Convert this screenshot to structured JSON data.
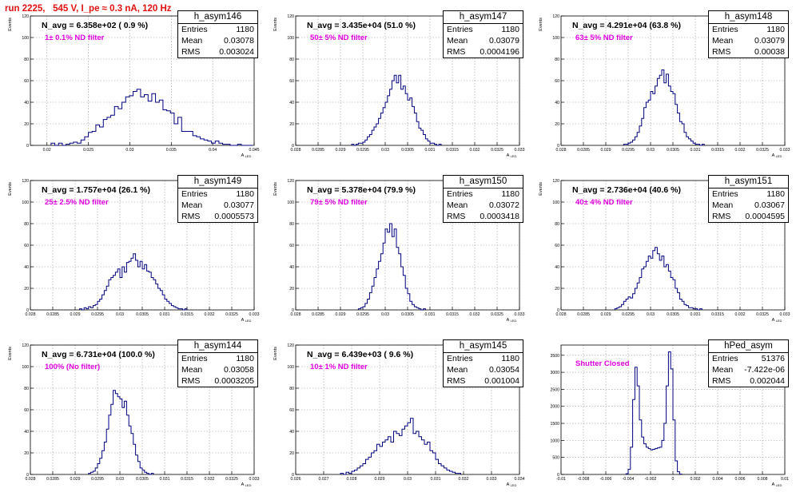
{
  "header": {
    "run_title": "run 2225,   545 V, I_pe ≈ 0.3 nA, 120 Hz"
  },
  "colors": {
    "hist_line": "#000080",
    "grid": "#999999",
    "filter_text": "#e000e0",
    "title_text": "#e01010"
  },
  "stat_labels": {
    "entries": "Entries",
    "mean": "Mean",
    "rms": "RMS"
  },
  "chart_data": [
    {
      "type": "histogram",
      "name": "h_asym146",
      "navg": "N_avg = 6.358e+02 ( 0.9 %)",
      "filter": "1± 0.1% ND filter",
      "stats": {
        "entries": "1180",
        "mean": "0.03078",
        "rms": "0.003024"
      },
      "xlabel": "A_LED",
      "ylabel": "Events",
      "xlim": [
        0.018,
        0.045
      ],
      "ylim": [
        0,
        120
      ],
      "xticks": [
        0.02,
        0.025,
        0.03,
        0.035,
        0.04,
        0.045
      ],
      "xtick_labels": [
        "0.02",
        "0.025",
        "0.03",
        "0.035",
        "0.04",
        "0.045"
      ],
      "yticks": [
        0,
        20,
        40,
        60,
        80,
        100,
        120
      ],
      "ytick_labels": [
        "0",
        "20",
        "40",
        "60",
        "80",
        "100",
        "120"
      ],
      "bins": {
        "start": 0.0205,
        "width": 0.00045,
        "values": [
          2,
          0,
          2,
          0,
          1,
          2,
          3,
          2,
          5,
          8,
          12,
          13,
          19,
          17,
          24,
          26,
          28,
          36,
          34,
          40,
          45,
          46,
          50,
          52,
          45,
          47,
          41,
          48,
          40,
          42,
          33,
          32,
          30,
          20,
          26,
          13,
          13,
          13,
          9,
          8,
          6,
          5,
          4,
          2,
          4,
          2,
          1,
          1,
          0,
          0,
          1,
          0,
          0,
          0
        ]
      },
      "grid": true
    },
    {
      "type": "histogram",
      "name": "h_asym147",
      "navg": "N_avg = 3.435e+04 (51.0 %)",
      "filter": "50± 5% ND filter",
      "stats": {
        "entries": "1180",
        "mean": "0.03079",
        "rms": "0.0004196"
      },
      "xlabel": "A_LED",
      "ylabel": "Events",
      "xlim": [
        0.028,
        0.033
      ],
      "ylim": [
        0,
        120
      ],
      "xticks": [
        0.028,
        0.0285,
        0.029,
        0.0295,
        0.03,
        0.0305,
        0.031,
        0.0315,
        0.032,
        0.0325,
        0.033
      ],
      "xtick_labels": [
        "0.028",
        "0.0285",
        "0.029",
        "0.0295",
        "0.03",
        "0.0305",
        "0.031",
        "0.0315",
        "0.032",
        "0.0325",
        "0.033"
      ],
      "yticks": [
        0,
        20,
        40,
        60,
        80,
        100,
        120
      ],
      "ytick_labels": [
        "0",
        "20",
        "40",
        "60",
        "80",
        "100",
        "120"
      ],
      "bins": {
        "start": 0.02925,
        "width": 5e-05,
        "values": [
          1,
          0,
          1,
          2,
          2,
          3,
          5,
          8,
          10,
          14,
          17,
          20,
          25,
          30,
          35,
          40,
          46,
          52,
          60,
          65,
          58,
          65,
          52,
          55,
          48,
          42,
          44,
          36,
          30,
          22,
          16,
          14,
          10,
          6,
          4,
          2,
          2,
          1,
          0,
          1
        ]
      },
      "grid": true
    },
    {
      "type": "histogram",
      "name": "h_asym148",
      "navg": "N_avg = 4.291e+04 (63.8 %)",
      "filter": "63± 5% ND filter",
      "stats": {
        "entries": "1180",
        "mean": "0.03079",
        "rms": "0.00038"
      },
      "xlabel": "A_LED",
      "ylabel": "Events",
      "xlim": [
        0.028,
        0.033
      ],
      "ylim": [
        0,
        120
      ],
      "xticks": [
        0.028,
        0.0285,
        0.029,
        0.0295,
        0.03,
        0.0305,
        0.031,
        0.0315,
        0.032,
        0.0325,
        0.033
      ],
      "xtick_labels": [
        "0.028",
        "0.0285",
        "0.029",
        "0.0295",
        "0.03",
        "0.0305",
        "0.031",
        "0.0315",
        "0.032",
        "0.0325",
        "0.033"
      ],
      "yticks": [
        0,
        20,
        40,
        60,
        80,
        100,
        120
      ],
      "ytick_labels": [
        "0",
        "20",
        "40",
        "60",
        "80",
        "100",
        "120"
      ],
      "bins": {
        "start": 0.0294,
        "width": 5e-05,
        "values": [
          1,
          1,
          2,
          3,
          5,
          8,
          12,
          18,
          25,
          35,
          40,
          42,
          50,
          48,
          55,
          62,
          65,
          70,
          58,
          66,
          55,
          50,
          48,
          38,
          30,
          22,
          20,
          12,
          8,
          6,
          4,
          2,
          1,
          1,
          0,
          1
        ]
      },
      "grid": true
    },
    {
      "type": "histogram",
      "name": "h_asym149",
      "navg": "N_avg = 1.757e+04 (26.1 %)",
      "filter": "25± 2.5% ND filter",
      "stats": {
        "entries": "1180",
        "mean": "0.03077",
        "rms": "0.0005573"
      },
      "xlabel": "A_LED",
      "ylabel": "Events",
      "xlim": [
        0.028,
        0.033
      ],
      "ylim": [
        0,
        120
      ],
      "xticks": [
        0.028,
        0.0285,
        0.029,
        0.0295,
        0.03,
        0.0305,
        0.031,
        0.0315,
        0.032,
        0.0325,
        0.033
      ],
      "xtick_labels": [
        "0.028",
        "0.0285",
        "0.029",
        "0.0295",
        "0.03",
        "0.0305",
        "0.031",
        "0.0315",
        "0.032",
        "0.0325",
        "0.033"
      ],
      "yticks": [
        0,
        20,
        40,
        60,
        80,
        100,
        120
      ],
      "ytick_labels": [
        "0",
        "20",
        "40",
        "60",
        "80",
        "100",
        "120"
      ],
      "bins": {
        "start": 0.0291,
        "width": 5e-05,
        "values": [
          1,
          0,
          2,
          1,
          3,
          2,
          4,
          5,
          8,
          10,
          14,
          18,
          22,
          28,
          30,
          32,
          35,
          38,
          30,
          40,
          35,
          44,
          45,
          48,
          52,
          46,
          40,
          45,
          38,
          42,
          36,
          35,
          30,
          28,
          24,
          20,
          18,
          14,
          10,
          8,
          6,
          4,
          3,
          2,
          1,
          1,
          0,
          1
        ]
      },
      "grid": true
    },
    {
      "type": "histogram",
      "name": "h_asym150",
      "navg": "N_avg = 5.378e+04 (79.9 %)",
      "filter": "79± 5% ND filter",
      "stats": {
        "entries": "1180",
        "mean": "0.03072",
        "rms": "0.0003418"
      },
      "xlabel": "A_LED",
      "ylabel": "Events",
      "xlim": [
        0.028,
        0.033
      ],
      "ylim": [
        0,
        120
      ],
      "xticks": [
        0.028,
        0.0285,
        0.029,
        0.0295,
        0.03,
        0.0305,
        0.031,
        0.0315,
        0.032,
        0.0325,
        0.033
      ],
      "xtick_labels": [
        "0.028",
        "0.0285",
        "0.029",
        "0.0295",
        "0.03",
        "0.0305",
        "0.031",
        "0.0315",
        "0.032",
        "0.0325",
        "0.033"
      ],
      "yticks": [
        0,
        20,
        40,
        60,
        80,
        100,
        120
      ],
      "ytick_labels": [
        "0",
        "20",
        "40",
        "60",
        "80",
        "100",
        "120"
      ],
      "bins": {
        "start": 0.0294,
        "width": 5e-05,
        "values": [
          1,
          2,
          3,
          6,
          10,
          16,
          22,
          30,
          38,
          45,
          52,
          62,
          75,
          72,
          80,
          68,
          75,
          58,
          52,
          40,
          32,
          20,
          15,
          8,
          5,
          3,
          2,
          1,
          0,
          1
        ]
      },
      "grid": true
    },
    {
      "type": "histogram",
      "name": "h_asym151",
      "navg": "N_avg = 2.736e+04 (40.6 %)",
      "filter": "40± 4% ND filter",
      "stats": {
        "entries": "1180",
        "mean": "0.03067",
        "rms": "0.0004595"
      },
      "xlabel": "A_LED",
      "ylabel": "Events",
      "xlim": [
        0.028,
        0.033
      ],
      "ylim": [
        0,
        120
      ],
      "xticks": [
        0.028,
        0.0285,
        0.029,
        0.0295,
        0.03,
        0.0305,
        0.031,
        0.0315,
        0.032,
        0.0325,
        0.033
      ],
      "xtick_labels": [
        "0.028",
        "0.0285",
        "0.029",
        "0.0295",
        "0.03",
        "0.0305",
        "0.031",
        "0.0315",
        "0.032",
        "0.0325",
        "0.033"
      ],
      "yticks": [
        0,
        20,
        40,
        60,
        80,
        100,
        120
      ],
      "ytick_labels": [
        "0",
        "20",
        "40",
        "60",
        "80",
        "100",
        "120"
      ],
      "bins": {
        "start": 0.0292,
        "width": 5e-05,
        "values": [
          1,
          2,
          3,
          5,
          8,
          10,
          12,
          11,
          15,
          20,
          25,
          30,
          38,
          40,
          45,
          50,
          48,
          55,
          58,
          52,
          46,
          50,
          40,
          42,
          36,
          30,
          28,
          20,
          16,
          10,
          8,
          5,
          4,
          2,
          2,
          1,
          1,
          0,
          1
        ]
      },
      "grid": true
    },
    {
      "type": "histogram",
      "name": "h_asym144",
      "navg": "N_avg = 6.731e+04 (100.0 %)",
      "filter": "100% (No filter)",
      "stats": {
        "entries": "1180",
        "mean": "0.03058",
        "rms": "0.0003205"
      },
      "xlabel": "A_LED",
      "ylabel": "Events",
      "xlim": [
        0.028,
        0.033
      ],
      "ylim": [
        0,
        120
      ],
      "xticks": [
        0.028,
        0.0285,
        0.029,
        0.0295,
        0.03,
        0.0305,
        0.031,
        0.0315,
        0.032,
        0.0325,
        0.033
      ],
      "xtick_labels": [
        "0.028",
        "0.0285",
        "0.029",
        "0.0295",
        "0.03",
        "0.0305",
        "0.031",
        "0.0315",
        "0.032",
        "0.0325",
        "0.033"
      ],
      "yticks": [
        0,
        20,
        40,
        60,
        80,
        100,
        120
      ],
      "ytick_labels": [
        "0",
        "20",
        "40",
        "60",
        "80",
        "100",
        "120"
      ],
      "bins": {
        "start": 0.0293,
        "width": 5e-05,
        "values": [
          1,
          2,
          3,
          6,
          10,
          15,
          22,
          30,
          42,
          55,
          65,
          78,
          75,
          72,
          70,
          62,
          68,
          55,
          45,
          38,
          28,
          18,
          12,
          6,
          4,
          2,
          1,
          0,
          1
        ]
      },
      "grid": true
    },
    {
      "type": "histogram",
      "name": "h_asym145",
      "navg": "N_avg = 6.439e+03 ( 9.6 %)",
      "filter": "10± 1% ND filter",
      "stats": {
        "entries": "1180",
        "mean": "0.03054",
        "rms": "0.001004"
      },
      "xlabel": "A_LED",
      "ylabel": "Events",
      "xlim": [
        0.026,
        0.034
      ],
      "ylim": [
        0,
        120
      ],
      "xticks": [
        0.026,
        0.027,
        0.028,
        0.029,
        0.03,
        0.031,
        0.032,
        0.033,
        0.034
      ],
      "xtick_labels": [
        "0.026",
        "0.027",
        "0.028",
        "0.029",
        "0.03",
        "0.031",
        "0.032",
        "0.033",
        "0.034"
      ],
      "yticks": [
        0,
        20,
        40,
        60,
        80,
        100,
        120
      ],
      "ytick_labels": [
        "0",
        "20",
        "40",
        "60",
        "80",
        "100",
        "120"
      ],
      "bins": {
        "start": 0.0276,
        "width": 0.0001,
        "values": [
          1,
          0,
          2,
          1,
          3,
          4,
          6,
          8,
          10,
          14,
          16,
          20,
          22,
          28,
          26,
          30,
          32,
          35,
          30,
          40,
          38,
          36,
          42,
          45,
          48,
          52,
          38,
          40,
          35,
          32,
          28,
          30,
          22,
          20,
          14,
          10,
          8,
          6,
          4,
          3,
          2,
          1,
          1
        ]
      },
      "grid": true
    },
    {
      "type": "histogram",
      "name": "hPed_asym",
      "navg": "",
      "filter": "Shutter Closed",
      "stats": {
        "entries": "51376",
        "mean": "-7.422e-06",
        "rms": "0.002044"
      },
      "xlabel": "A_LED",
      "ylabel": "",
      "xlim": [
        -0.01,
        0.01
      ],
      "ylim": [
        0,
        3800
      ],
      "xticks": [
        -0.01,
        -0.008,
        -0.006,
        -0.004,
        -0.002,
        0,
        0.002,
        0.004,
        0.006,
        0.008,
        0.01
      ],
      "xtick_labels": [
        "-0.01",
        "-0.008",
        "-0.006",
        "-0.004",
        "-0.002",
        "0",
        "0.002",
        "0.004",
        "0.006",
        "0.008",
        "0.01"
      ],
      "yticks": [
        0,
        500,
        1000,
        1500,
        2000,
        2500,
        3000,
        3500
      ],
      "ytick_labels": [
        "0",
        "500",
        "1000",
        "1500",
        "2000",
        "2500",
        "3000",
        "3500"
      ],
      "bins": {
        "start": -0.0042,
        "width": 0.0002,
        "values": [
          20,
          150,
          800,
          2200,
          3150,
          2600,
          1600,
          1100,
          900,
          800,
          760,
          720,
          740,
          760,
          780,
          800,
          1000,
          1500,
          2600,
          3600,
          3100,
          1600,
          400,
          80,
          10
        ]
      },
      "grid": true
    }
  ]
}
